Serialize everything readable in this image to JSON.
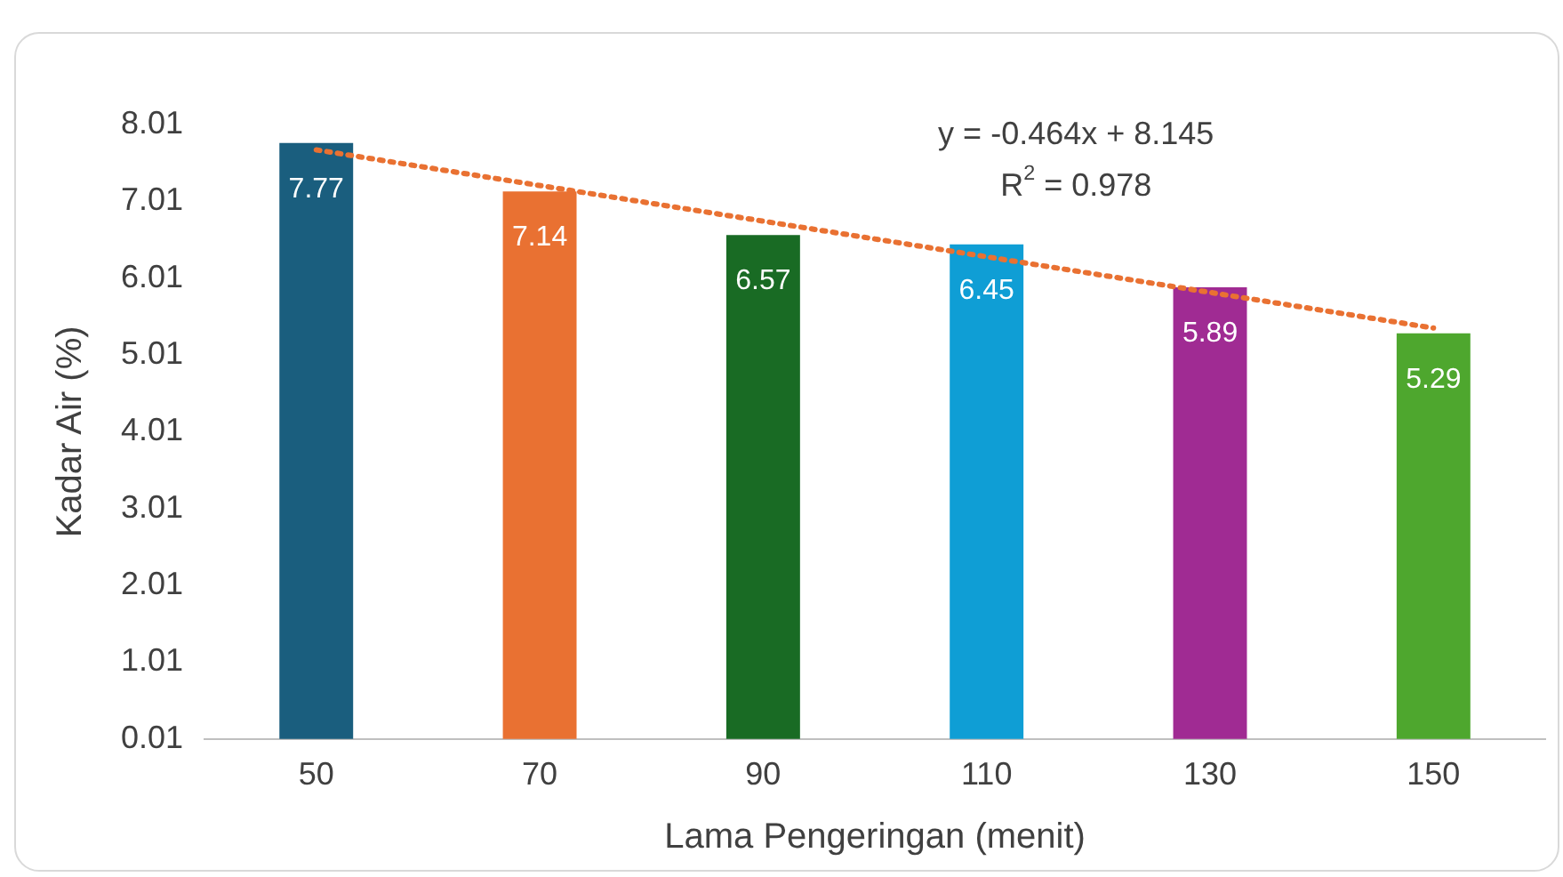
{
  "chart_data": {
    "type": "bar",
    "xlabel": "Lama Pengeringan (menit)",
    "ylabel": "Kadar Air (%)",
    "categories": [
      "50",
      "70",
      "90",
      "110",
      "130",
      "150"
    ],
    "series": [
      {
        "colors": [
          "#1a5e7e",
          "#e97132",
          "#196b24",
          "#0f9ed5",
          "#a02b93",
          "#4ea72e"
        ],
        "values": [
          7.77,
          7.14,
          6.57,
          6.45,
          5.89,
          5.29
        ],
        "value_labels": [
          "7.77",
          "7.14",
          "6.57",
          "6.45",
          "5.89",
          "5.29"
        ]
      },
      {
        "type": "line",
        "x": [
          "50",
          "150"
        ],
        "values": [
          7.68,
          5.36
        ],
        "color": "#e97132",
        "line_style": "dotted",
        "marker": "none"
      }
    ],
    "ylim": [
      0.01,
      8.01
    ],
    "yticks": [
      0.01,
      1.01,
      2.01,
      3.01,
      4.01,
      5.01,
      6.01,
      7.01,
      8.01
    ],
    "grid": false,
    "legend": false,
    "annotations": [
      "y = -0.464x + 8.145",
      "R$^{2}$ = 0.978"
    ]
  }
}
